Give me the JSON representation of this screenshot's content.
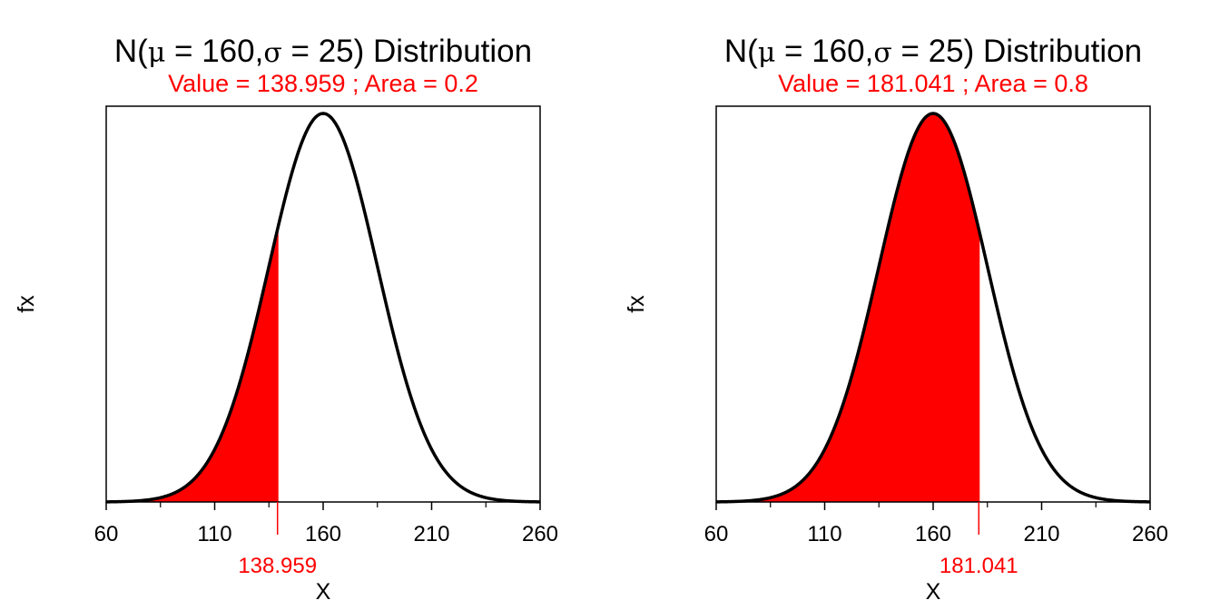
{
  "chart_data": [
    {
      "type": "area",
      "title": {
        "prefix": "N(",
        "mu_symbol": "μ",
        "eq1": " = ",
        "mean": "160",
        "sep": ",",
        "sigma_symbol": "σ",
        "eq2": " = ",
        "sd": "25",
        "suffix": ") Distribution"
      },
      "subtitle": "Value = 138.959 ; Area =   0.2",
      "xlabel": "X",
      "ylabel": "fx",
      "xlim": [
        60,
        260
      ],
      "xticks": [
        60,
        110,
        160,
        210,
        260
      ],
      "minor_ticks": [
        85,
        135,
        185,
        235
      ],
      "distribution": {
        "mean": 160,
        "sd": 25
      },
      "shade_from": 60,
      "shade_to": 138.959,
      "cut_label": "138.959",
      "fill_color": "#ff0000",
      "curve_color": "#000000"
    },
    {
      "type": "area",
      "title": {
        "prefix": "N(",
        "mu_symbol": "μ",
        "eq1": " = ",
        "mean": "160",
        "sep": ",",
        "sigma_symbol": "σ",
        "eq2": " = ",
        "sd": "25",
        "suffix": ") Distribution"
      },
      "subtitle": "Value = 181.041 ; Area =   0.8",
      "xlabel": "X",
      "ylabel": "fx",
      "xlim": [
        60,
        260
      ],
      "xticks": [
        60,
        110,
        160,
        210,
        260
      ],
      "minor_ticks": [
        85,
        135,
        185,
        235
      ],
      "distribution": {
        "mean": 160,
        "sd": 25
      },
      "shade_from": 60,
      "shade_to": 181.041,
      "cut_label": "181.041",
      "fill_color": "#ff0000",
      "curve_color": "#000000"
    }
  ]
}
